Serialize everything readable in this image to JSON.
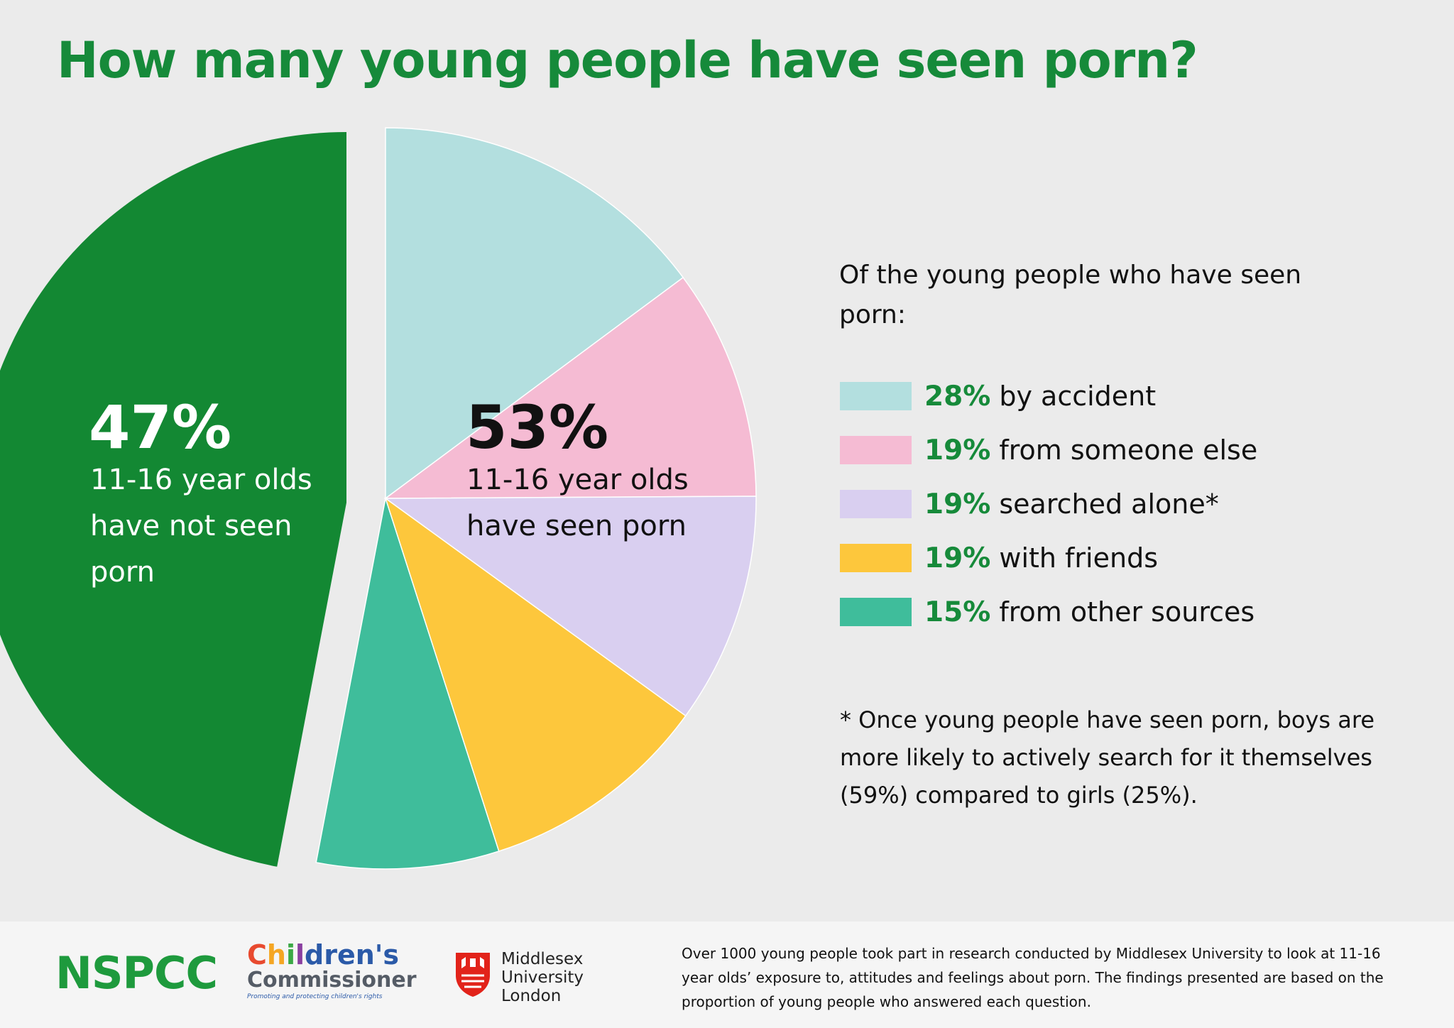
{
  "title": "How many young people have seen porn?",
  "chart_data": {
    "type": "pie",
    "groups": [
      {
        "name": "not_seen",
        "percent": 47,
        "label": "11-16 year olds have not seen porn",
        "color": "#138833"
      },
      {
        "name": "seen",
        "percent": 53,
        "label": "11-16 year olds have seen porn",
        "breakdown_ref": "legend"
      }
    ],
    "slices": [
      {
        "pct": "28%",
        "value": 28,
        "label": "by accident",
        "color": "#b3dfdf"
      },
      {
        "pct": "19%",
        "value": 19,
        "label": "from someone else",
        "color": "#f5bbd3"
      },
      {
        "pct": "19%",
        "value": 19,
        "label": "searched alone*",
        "color": "#d9cff0"
      },
      {
        "pct": "19%",
        "value": 19,
        "label": "with friends",
        "color": "#fdc73c"
      },
      {
        "pct": "15%",
        "value": 15,
        "label": "from other sources",
        "color": "#3fbd9b"
      }
    ]
  },
  "pie_labels": {
    "left_pct": "47%",
    "left_line1": "11-16 year olds",
    "left_line2": "have not seen",
    "left_line3": "porn",
    "right_pct": "53%",
    "right_line1": "11-16 year olds",
    "right_line2": "have seen porn"
  },
  "legend": {
    "intro_line1": "Of the young people who have seen",
    "intro_line2": "porn:"
  },
  "footnote": {
    "line1": "* Once young people have seen porn, boys are",
    "line2": "more likely to actively search for it themselves",
    "line3": "(59%) compared to girls (25%)."
  },
  "footer": {
    "nspcc": "NSPCC",
    "cc_line1_parts": [
      "C",
      "h",
      "i",
      "l",
      "dren's"
    ],
    "cc_line2": "Commissioner",
    "cc_line3": "Promoting and protecting children's rights",
    "mdx_line1": "Middlesex",
    "mdx_line2": "University",
    "mdx_line3": "London",
    "note_line1": "Over 1000 young people took part in research conducted by Middlesex University to look at 11-16",
    "note_line2": "year olds’ exposure to, attitudes and feelings about porn.  The findings presented are based on the",
    "note_line3": "proportion of young people who answered each question."
  }
}
